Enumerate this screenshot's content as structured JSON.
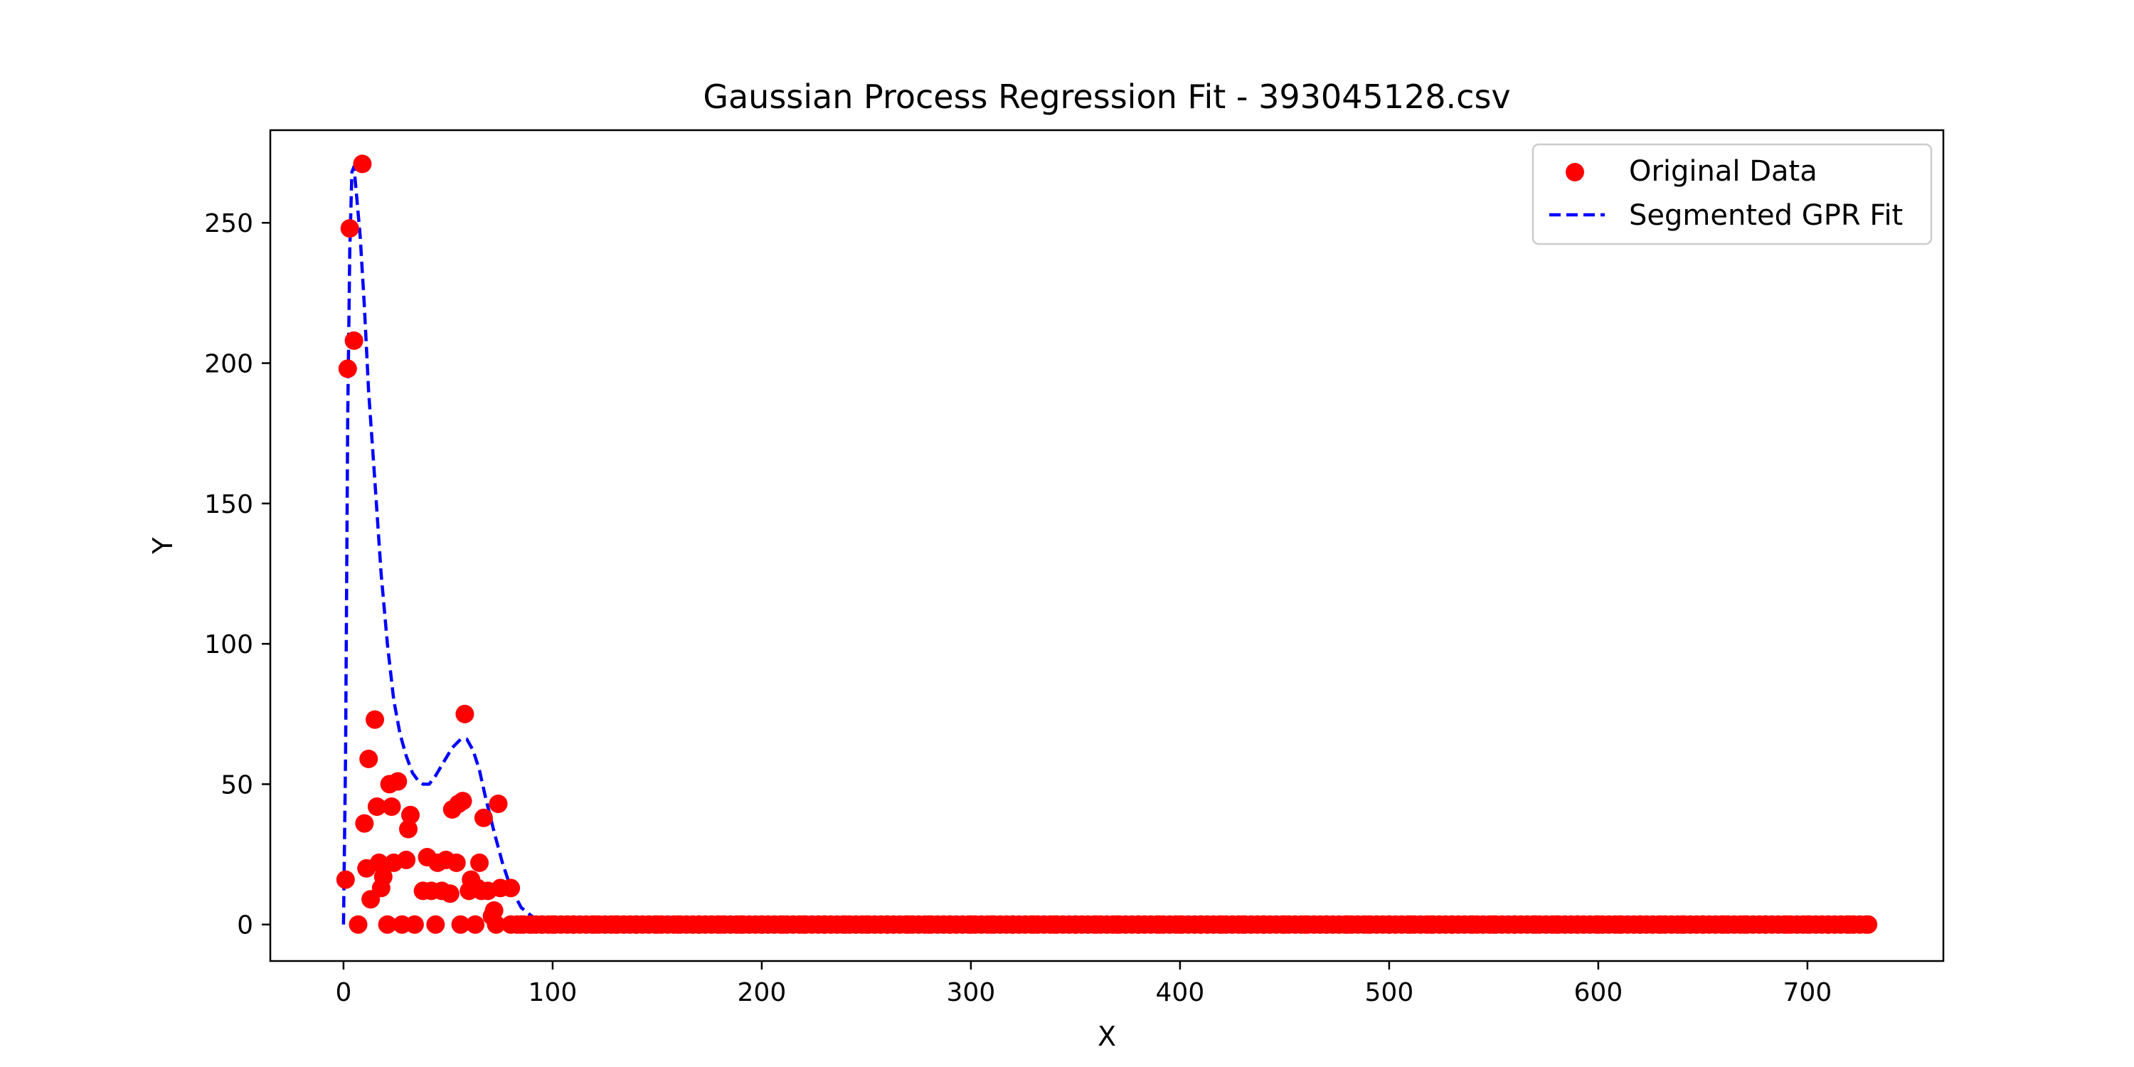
{
  "chart_data": {
    "type": "scatter",
    "title": "Gaussian Process Regression Fit - 393045128.csv",
    "xlabel": "X",
    "ylabel": "Y",
    "xlim": [
      -35,
      765
    ],
    "ylim": [
      -13,
      283
    ],
    "xticks": [
      0,
      100,
      200,
      300,
      400,
      500,
      600,
      700
    ],
    "yticks": [
      0,
      50,
      100,
      150,
      200,
      250
    ],
    "grid": false,
    "legend_position": "top-right",
    "colors": {
      "points": "#ff0000",
      "fit": "#0000ff"
    },
    "series": [
      {
        "name": "Original Data",
        "kind": "scatter",
        "points": [
          [
            1,
            16
          ],
          [
            2,
            198
          ],
          [
            3,
            248
          ],
          [
            5,
            208
          ],
          [
            7,
            0
          ],
          [
            9,
            271
          ],
          [
            10,
            36
          ],
          [
            11,
            20
          ],
          [
            12,
            59
          ],
          [
            13,
            9
          ],
          [
            15,
            73
          ],
          [
            16,
            42
          ],
          [
            17,
            22
          ],
          [
            18,
            13
          ],
          [
            19,
            17
          ],
          [
            21,
            0
          ],
          [
            22,
            50
          ],
          [
            23,
            42
          ],
          [
            24,
            22
          ],
          [
            26,
            51
          ],
          [
            28,
            0
          ],
          [
            30,
            23
          ],
          [
            31,
            34
          ],
          [
            32,
            39
          ],
          [
            34,
            0
          ],
          [
            38,
            12
          ],
          [
            40,
            24
          ],
          [
            42,
            12
          ],
          [
            44,
            0
          ],
          [
            45,
            22
          ],
          [
            47,
            12
          ],
          [
            49,
            23
          ],
          [
            51,
            11
          ],
          [
            52,
            41
          ],
          [
            54,
            22
          ],
          [
            55,
            43
          ],
          [
            56,
            0
          ],
          [
            57,
            44
          ],
          [
            58,
            75
          ],
          [
            60,
            12
          ],
          [
            61,
            16
          ],
          [
            63,
            0
          ],
          [
            64,
            13
          ],
          [
            65,
            22
          ],
          [
            66,
            12
          ],
          [
            67,
            38
          ],
          [
            69,
            12
          ],
          [
            71,
            3
          ],
          [
            72,
            5
          ],
          [
            73,
            0
          ],
          [
            74,
            43
          ],
          [
            75,
            13
          ],
          [
            80,
            13
          ],
          [
            85,
            0
          ],
          [
            90,
            0
          ],
          [
            95,
            0
          ],
          [
            100,
            0
          ],
          [
            110,
            0
          ],
          [
            120,
            0
          ],
          [
            130,
            0
          ],
          [
            140,
            0
          ],
          [
            150,
            0
          ],
          [
            160,
            0
          ],
          [
            170,
            0
          ],
          [
            180,
            0
          ],
          [
            190,
            0
          ],
          [
            200,
            0
          ],
          [
            210,
            0
          ],
          [
            220,
            0
          ],
          [
            230,
            0
          ],
          [
            240,
            0
          ],
          [
            250,
            0
          ],
          [
            260,
            0
          ],
          [
            270,
            0
          ],
          [
            280,
            0
          ],
          [
            290,
            0
          ],
          [
            300,
            0
          ],
          [
            310,
            0
          ],
          [
            320,
            0
          ],
          [
            330,
            0
          ],
          [
            340,
            0
          ],
          [
            350,
            0
          ],
          [
            360,
            0
          ],
          [
            370,
            0
          ],
          [
            380,
            0
          ],
          [
            390,
            0
          ],
          [
            400,
            0
          ],
          [
            410,
            0
          ],
          [
            420,
            0
          ],
          [
            430,
            0
          ],
          [
            440,
            0
          ],
          [
            450,
            0
          ],
          [
            460,
            0
          ],
          [
            470,
            0
          ],
          [
            480,
            0
          ],
          [
            490,
            0
          ],
          [
            500,
            0
          ],
          [
            510,
            0
          ],
          [
            520,
            0
          ],
          [
            530,
            0
          ],
          [
            540,
            0
          ],
          [
            550,
            0
          ],
          [
            560,
            0
          ],
          [
            570,
            0
          ],
          [
            580,
            0
          ],
          [
            590,
            0
          ],
          [
            600,
            0
          ],
          [
            610,
            0
          ],
          [
            620,
            0
          ],
          [
            630,
            0
          ],
          [
            640,
            0
          ],
          [
            650,
            0
          ],
          [
            660,
            0
          ],
          [
            670,
            0
          ],
          [
            680,
            0
          ],
          [
            690,
            0
          ],
          [
            700,
            0
          ],
          [
            710,
            0
          ],
          [
            720,
            0
          ],
          [
            729,
            0
          ]
        ]
      },
      {
        "name": "Segmented GPR Fit",
        "kind": "line",
        "style": "dashed",
        "points": [
          [
            0,
            0
          ],
          [
            1,
            60
          ],
          [
            2,
            180
          ],
          [
            3,
            240
          ],
          [
            4,
            268
          ],
          [
            5,
            270
          ],
          [
            6,
            262
          ],
          [
            8,
            245
          ],
          [
            10,
            220
          ],
          [
            12,
            190
          ],
          [
            15,
            158
          ],
          [
            18,
            125
          ],
          [
            21,
            100
          ],
          [
            24,
            80
          ],
          [
            27,
            68
          ],
          [
            30,
            60
          ],
          [
            33,
            54
          ],
          [
            36,
            51
          ],
          [
            38,
            50
          ],
          [
            41,
            50
          ],
          [
            44,
            53
          ],
          [
            48,
            58
          ],
          [
            52,
            63
          ],
          [
            56,
            66
          ],
          [
            59,
            66
          ],
          [
            62,
            62
          ],
          [
            65,
            55
          ],
          [
            68,
            45
          ],
          [
            72,
            33
          ],
          [
            76,
            22
          ],
          [
            80,
            13
          ],
          [
            85,
            6
          ],
          [
            90,
            3
          ],
          [
            95,
            1
          ],
          [
            100,
            0.5
          ],
          [
            105,
            0
          ],
          [
            110,
            0.3
          ],
          [
            120,
            1.5
          ],
          [
            140,
            2
          ],
          [
            200,
            2
          ],
          [
            300,
            2
          ],
          [
            400,
            2
          ],
          [
            500,
            2
          ],
          [
            600,
            2
          ],
          [
            700,
            2
          ],
          [
            729,
            2
          ]
        ]
      }
    ]
  }
}
